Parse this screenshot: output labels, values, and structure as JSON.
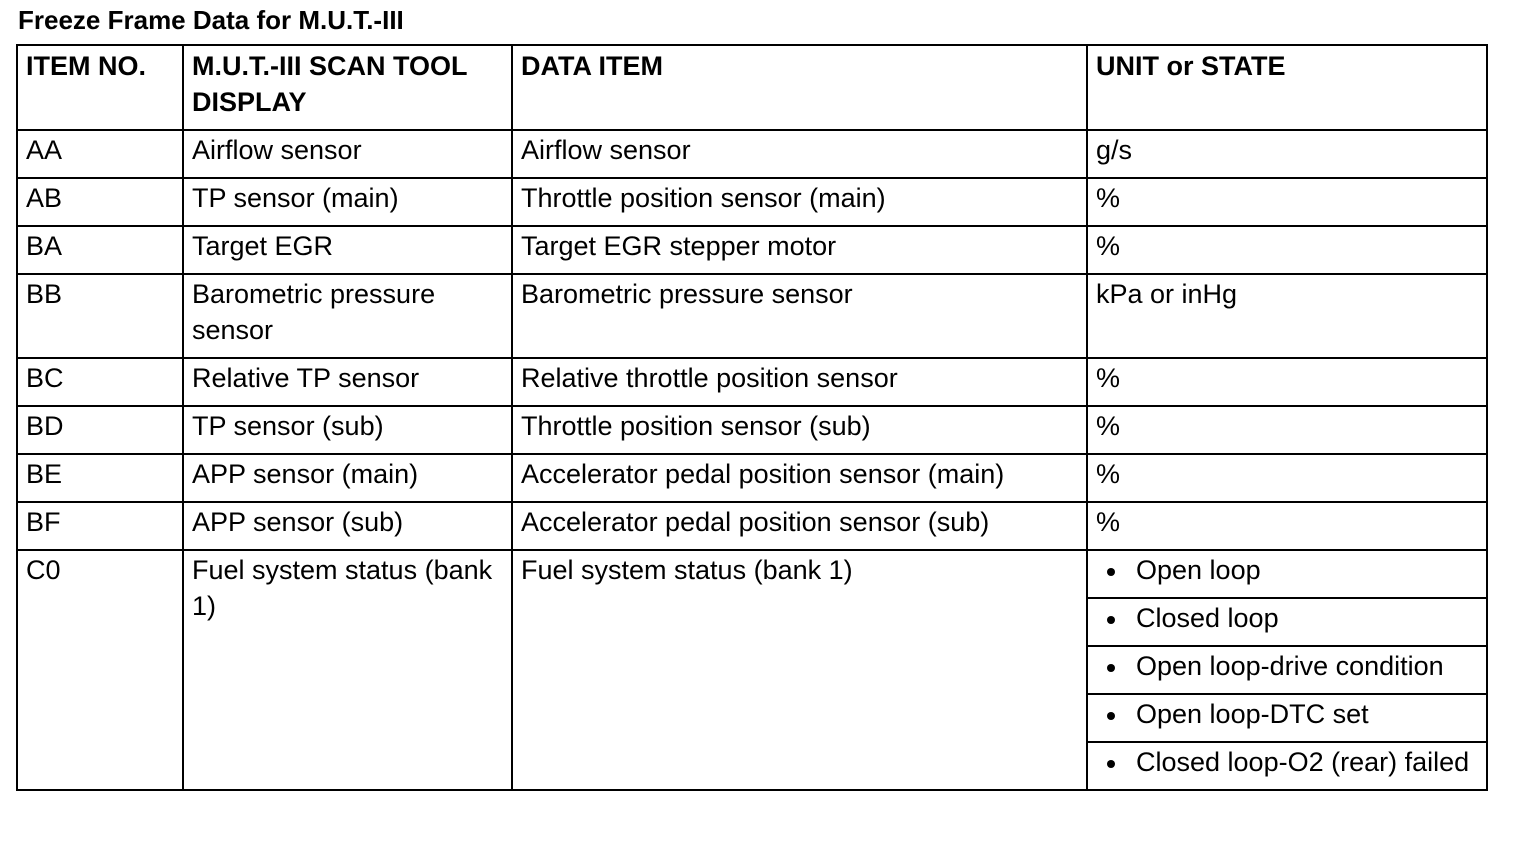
{
  "title": "Freeze Frame Data for M.U.T.-III",
  "table": {
    "headers": [
      "ITEM NO.",
      "M.U.T.-III SCAN TOOL DISPLAY",
      "DATA ITEM",
      "UNIT or STATE"
    ],
    "rows": [
      {
        "item_no": "AA",
        "display": "Airflow sensor",
        "data_item": "Airflow sensor",
        "unit": "g/s"
      },
      {
        "item_no": "AB",
        "display": "TP sensor (main)",
        "data_item": "Throttle position sensor (main)",
        "unit": "%"
      },
      {
        "item_no": "BA",
        "display": "Target EGR",
        "data_item": "Target EGR stepper motor",
        "unit": "%"
      },
      {
        "item_no": "BB",
        "display": "Barometric pressure sensor",
        "data_item": "Barometric pressure sensor",
        "unit": "kPa or inHg"
      },
      {
        "item_no": "BC",
        "display": "Relative TP sensor",
        "data_item": "Relative throttle position sensor",
        "unit": "%"
      },
      {
        "item_no": "BD",
        "display": "TP sensor (sub)",
        "data_item": "Throttle position sensor (sub)",
        "unit": "%"
      },
      {
        "item_no": "BE",
        "display": "APP sensor (main)",
        "data_item": "Accelerator pedal position sensor (main)",
        "unit": "%"
      },
      {
        "item_no": "BF",
        "display": "APP sensor (sub)",
        "data_item": "Accelerator pedal position sensor (sub)",
        "unit": "%"
      }
    ],
    "fuel_row": {
      "item_no": "C0",
      "display": "Fuel system status (bank 1)",
      "data_item": "Fuel system status (bank 1)",
      "states": [
        "Open loop",
        "Closed loop",
        "Open loop-drive condition",
        "Open loop-DTC set",
        "Closed loop-O2 (rear) failed"
      ]
    }
  }
}
